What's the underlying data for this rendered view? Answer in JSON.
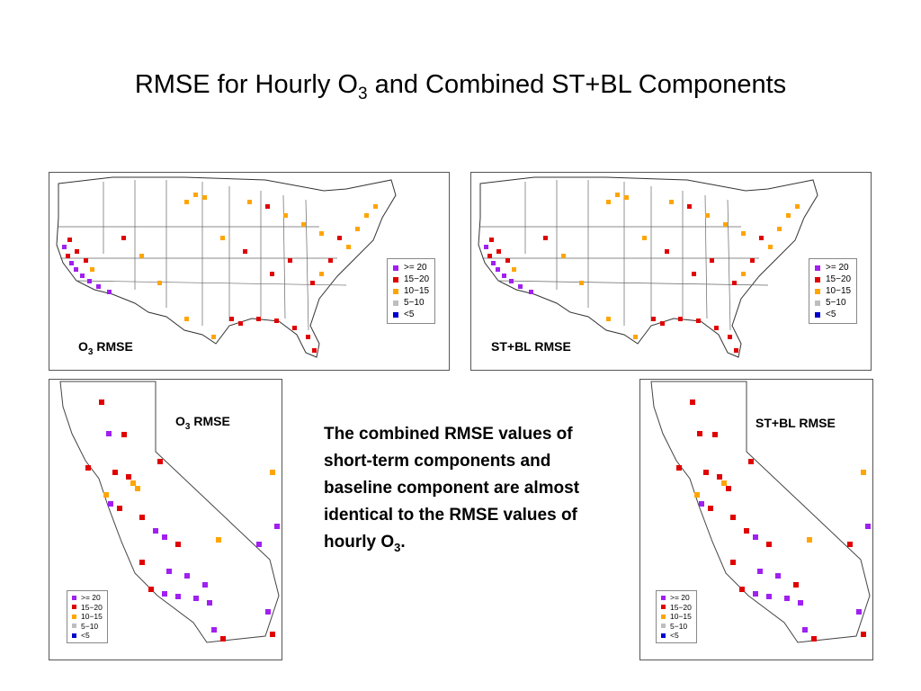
{
  "slide": {
    "title_main": "RMSE for Hourly O",
    "title_sub": "3",
    "title_rest": " and Combined ST+BL Components"
  },
  "panels": {
    "us_o3": {
      "label_main": "O",
      "label_sub": "3",
      "label_rest": " RMSE"
    },
    "us_stbl": {
      "label": "ST+BL RMSE"
    },
    "ca_o3": {
      "label_main": "O",
      "label_sub": "3",
      "label_rest": " RMSE"
    },
    "ca_stbl": {
      "label": "ST+BL RMSE"
    }
  },
  "legend": {
    "items": [
      {
        "label": ">= 20",
        "color": "#a020f0"
      },
      {
        "label": "15−20",
        "color": "#e00000"
      },
      {
        "label": "10−15",
        "color": "#ffa500"
      },
      {
        "label": "5−10",
        "color": "#bebebe"
      },
      {
        "label": "<5",
        "color": "#0000cd"
      }
    ]
  },
  "description": {
    "text_main": "The combined RMSE values of short-term components and baseline component are almost identical to the RMSE values of hourly O",
    "text_sub": "3",
    "text_end": "."
  }
}
